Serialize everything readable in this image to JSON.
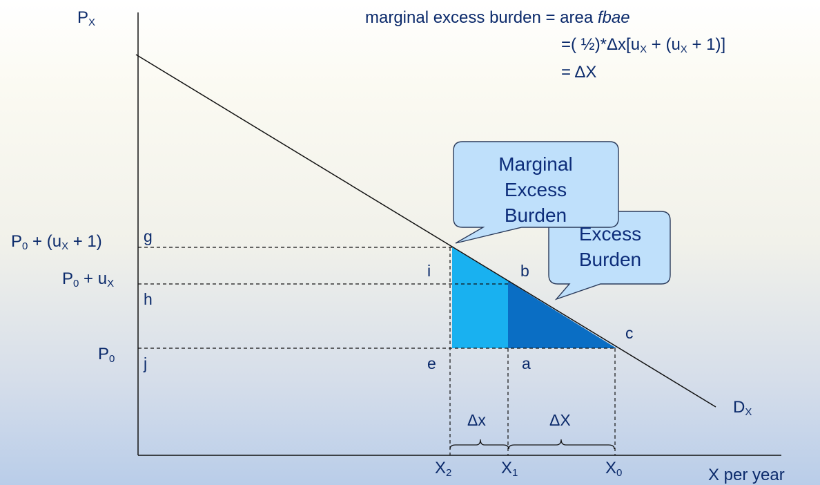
{
  "axes": {
    "y_label": "P",
    "y_label_sub": "X",
    "x_label": "X per year",
    "demand_label": "D",
    "demand_label_sub": "X"
  },
  "price_labels": {
    "p0": {
      "main": "P",
      "sub": "0"
    },
    "p0_ux": {
      "main": "P",
      "sub": "0",
      "mid": " + u",
      "sub2": "X"
    },
    "p0_ux1": {
      "main": "P",
      "sub": "0",
      "mid": " + (u",
      "sub2": "X",
      "end": " + 1)"
    }
  },
  "quantity_labels": {
    "x2": {
      "main": "X",
      "sub": "2"
    },
    "x1": {
      "main": "X",
      "sub": "1"
    },
    "x0": {
      "main": "X",
      "sub": "0"
    }
  },
  "point_labels": {
    "g": "g",
    "h": "h",
    "j": "j",
    "i": "i",
    "b": "b",
    "c": "c",
    "e": "e",
    "a": "a"
  },
  "brace_labels": {
    "small": "Δx",
    "large": "ΔX"
  },
  "formula": {
    "line1_prefix": "marginal excess burden = area ",
    "line1_italic": "fbae",
    "line2_a": "=( ½)*Δx[u",
    "line2_sub1": "X",
    "line2_b": " + (u",
    "line2_sub2": "X",
    "line2_c": " + 1)]",
    "line3": "= ΔX"
  },
  "callouts": {
    "marginal": [
      "Marginal",
      "Excess",
      "Burden"
    ],
    "excess_visible": [
      "Excess",
      "Burden"
    ]
  },
  "colors": {
    "light_area": "#19b1f0",
    "dark_area": "#0a6ec4",
    "callout_fill": "#bfe0fb",
    "callout_stroke": "#2a3a5a",
    "text": "#0b2a6b"
  }
}
